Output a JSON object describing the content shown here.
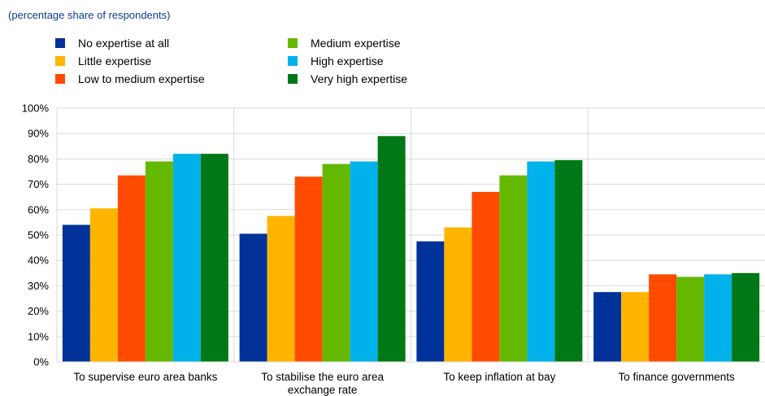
{
  "chart_data": {
    "type": "bar",
    "subtitle": "(percentage share of respondents)",
    "categories": [
      [
        "To supervise euro area banks"
      ],
      [
        "To stabilise the euro area",
        "exchange rate"
      ],
      [
        "To keep inflation at bay"
      ],
      [
        "To finance governments"
      ]
    ],
    "series": [
      {
        "name": "No expertise at all",
        "color": "#003299",
        "values": [
          54,
          50.5,
          47.5,
          27.5
        ]
      },
      {
        "name": "Little expertise",
        "color": "#ffb400",
        "values": [
          60.5,
          57.5,
          53,
          27.5
        ]
      },
      {
        "name": "Low to medium expertise",
        "color": "#ff4b00",
        "values": [
          73.5,
          73,
          67,
          34.5
        ]
      },
      {
        "name": "Medium expertise",
        "color": "#65b800",
        "values": [
          79,
          78,
          73.5,
          33.5
        ]
      },
      {
        "name": "High expertise",
        "color": "#00b1ea",
        "values": [
          82,
          79,
          79,
          34.5
        ]
      },
      {
        "name": "Very high expertise",
        "color": "#007816",
        "values": [
          82,
          89,
          79.5,
          35
        ]
      }
    ],
    "ylim": [
      0,
      100
    ],
    "yticks": [
      "0%",
      "10%",
      "20%",
      "30%",
      "40%",
      "50%",
      "60%",
      "70%",
      "80%",
      "90%",
      "100%"
    ],
    "grid": true,
    "legend_position": "top"
  }
}
